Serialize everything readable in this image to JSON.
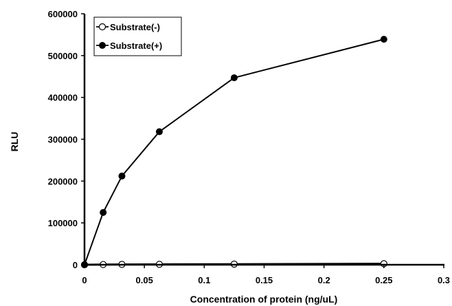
{
  "chart_data": {
    "type": "line",
    "title": "",
    "xlabel": "Concentration of protein (ng/uL)",
    "ylabel": "RLU",
    "xlim": [
      0,
      0.3
    ],
    "ylim": [
      0,
      600000
    ],
    "x_ticks": [
      "0",
      "0.05",
      "0.1",
      "0.15",
      "0.2",
      "0.25",
      "0.3"
    ],
    "y_ticks": [
      "0",
      "100000",
      "200000",
      "300000",
      "400000",
      "500000",
      "600000"
    ],
    "grid": false,
    "legend_position": "top-left",
    "series": [
      {
        "name": "Substrate(-)",
        "marker": "open-circle",
        "color": "#000000",
        "points": [
          [
            0,
            0
          ],
          [
            0.0156,
            500
          ],
          [
            0.03125,
            800
          ],
          [
            0.0625,
            1000
          ],
          [
            0.125,
            1500
          ],
          [
            0.25,
            2500
          ]
        ]
      },
      {
        "name": "Substrate(+)",
        "marker": "filled-circle",
        "color": "#000000",
        "points": [
          [
            0,
            0
          ],
          [
            0.0156,
            125000
          ],
          [
            0.03125,
            212000
          ],
          [
            0.0625,
            318000
          ],
          [
            0.125,
            447000
          ],
          [
            0.25,
            539000
          ]
        ]
      }
    ]
  }
}
